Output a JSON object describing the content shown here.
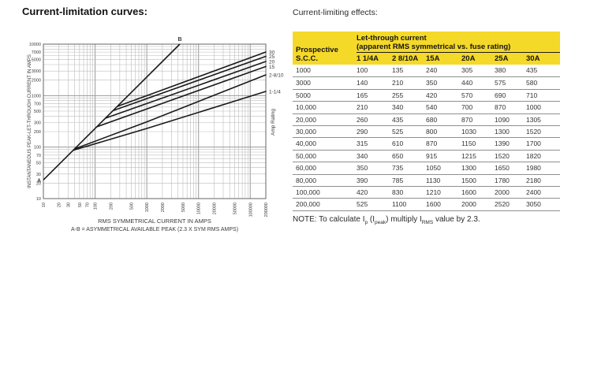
{
  "titles": {
    "left": "Current-limitation curves:",
    "right": "Current-limiting effects:"
  },
  "colors": {
    "table_header_bg": "#F5D929",
    "curve_color": "#1a1a1a",
    "grid_minor": "#bcbcbc",
    "grid_major": "#9a9a9a",
    "axis_frame": "#666666",
    "tick_text": "#444444"
  },
  "table": {
    "corner_header": [
      "Prospective",
      "S.C.C."
    ],
    "group_header": [
      "Let-through current",
      "(apparent RMS symmetrical vs. fuse rating)"
    ],
    "columns": [
      "1 1/4A",
      "2 8/10A",
      "15A",
      "20A",
      "25A",
      "30A"
    ],
    "rows": [
      {
        "scc": "1000",
        "values": [
          "100",
          "135",
          "240",
          "305",
          "380",
          "435"
        ]
      },
      {
        "scc": "3000",
        "values": [
          "140",
          "210",
          "350",
          "440",
          "575",
          "580"
        ]
      },
      {
        "scc": "5000",
        "values": [
          "165",
          "255",
          "420",
          "570",
          "690",
          "710"
        ]
      },
      {
        "scc": "10,000",
        "values": [
          "210",
          "340",
          "540",
          "700",
          "870",
          "1000"
        ]
      },
      {
        "scc": "20,000",
        "values": [
          "260",
          "435",
          "680",
          "870",
          "1090",
          "1305"
        ]
      },
      {
        "scc": "30,000",
        "values": [
          "290",
          "525",
          "800",
          "1030",
          "1300",
          "1520"
        ]
      },
      {
        "scc": "40,000",
        "values": [
          "315",
          "610",
          "870",
          "1150",
          "1390",
          "1700"
        ]
      },
      {
        "scc": "50,000",
        "values": [
          "340",
          "650",
          "915",
          "1215",
          "1520",
          "1820"
        ]
      },
      {
        "scc": "60,000",
        "values": [
          "350",
          "735",
          "1050",
          "1300",
          "1650",
          "1980"
        ]
      },
      {
        "scc": "80,000",
        "values": [
          "390",
          "785",
          "1130",
          "1500",
          "1780",
          "2180"
        ]
      },
      {
        "scc": "100,000",
        "values": [
          "420",
          "830",
          "1210",
          "1600",
          "2000",
          "2400"
        ]
      },
      {
        "scc": "200,000",
        "values": [
          "525",
          "1100",
          "1600",
          "2000",
          "2520",
          "3050"
        ]
      }
    ],
    "note_segments": [
      {
        "text": "NOTE: To calculate I"
      },
      {
        "text": "p",
        "sub": true
      },
      {
        "text": " (I"
      },
      {
        "text": "peak",
        "sub": true
      },
      {
        "text": ") multiply I"
      },
      {
        "text": "RMS",
        "sub": true
      },
      {
        "text": " value by 2.3."
      }
    ]
  },
  "chart_data": {
    "type": "line",
    "title": "Current-limitation curves",
    "x_scale": "log",
    "y_scale": "log",
    "xlim": [
      10,
      200000
    ],
    "ylim": [
      10,
      10000
    ],
    "grid": true,
    "xlabel": "RMS SYMMETRICAL CURRENT IN AMPS",
    "x_note": "A-B = ASYMMETRICAL AVAILABLE PEAK (2.3 X SYM RMS AMPS)",
    "ylabel": "INSTANTANEOUS PEAK-LET-THROUGH CURRENT IN AMPS",
    "right_axis_title": "Amp Rating",
    "x_tick_labels": [
      10,
      20,
      30,
      50,
      70,
      100,
      200,
      500,
      1000,
      2000,
      5000,
      10000,
      20000,
      50000,
      100000,
      200000
    ],
    "y_tick_labels": [
      10,
      20,
      30,
      50,
      70,
      100,
      200,
      300,
      500,
      700,
      1000,
      2000,
      3000,
      5000,
      7000,
      10000
    ],
    "ab_line": {
      "start_label": "A",
      "end_label": "B",
      "points": [
        [
          10,
          23
        ],
        [
          4348,
          10000
        ]
      ]
    },
    "series": [
      {
        "name": "30",
        "points": [
          [
            269,
            618
          ],
          [
            1000,
            1000
          ],
          [
            200000,
            7015
          ]
        ]
      },
      {
        "name": "25",
        "points": [
          [
            222,
            511
          ],
          [
            1000,
            874
          ],
          [
            200000,
            5796
          ]
        ]
      },
      {
        "name": "20",
        "points": [
          [
            158,
            364
          ],
          [
            1000,
            701
          ],
          [
            200000,
            4600
          ]
        ]
      },
      {
        "name": "15",
        "points": [
          [
            108,
            248
          ],
          [
            1000,
            552
          ],
          [
            200000,
            3680
          ]
        ]
      },
      {
        "name": "2-8/10",
        "points": [
          [
            40,
            92
          ],
          [
            1000,
            310
          ],
          [
            200000,
            2530
          ]
        ]
      },
      {
        "name": "1-1/4",
        "points": [
          [
            38,
            87
          ],
          [
            1000,
            230
          ],
          [
            200000,
            1207
          ]
        ]
      }
    ]
  }
}
